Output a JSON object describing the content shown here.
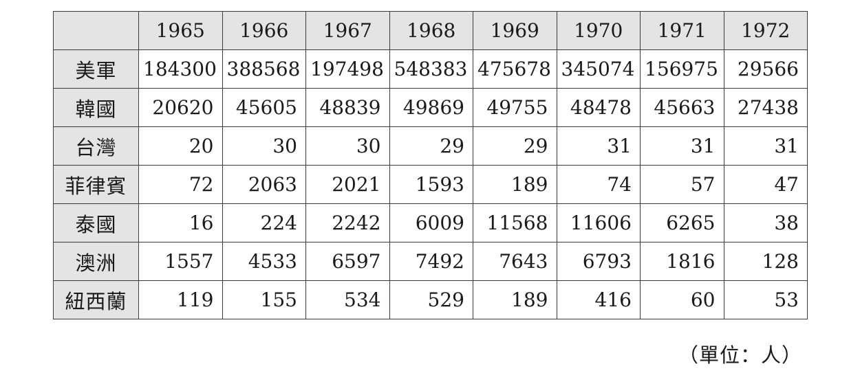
{
  "table": {
    "columns": [
      "1965",
      "1966",
      "1967",
      "1968",
      "1969",
      "1970",
      "1971",
      "1972"
    ],
    "rows": [
      {
        "label": "美軍",
        "values": [
          "184300",
          "388568",
          "197498",
          "548383",
          "475678",
          "345074",
          "156975",
          "29566"
        ]
      },
      {
        "label": "韓國",
        "values": [
          "20620",
          "45605",
          "48839",
          "49869",
          "49755",
          "48478",
          "45663",
          "27438"
        ]
      },
      {
        "label": "台灣",
        "values": [
          "20",
          "30",
          "30",
          "29",
          "29",
          "31",
          "31",
          "31"
        ]
      },
      {
        "label": "菲律賓",
        "values": [
          "72",
          "2063",
          "2021",
          "1593",
          "189",
          "74",
          "57",
          "47"
        ]
      },
      {
        "label": "泰國",
        "values": [
          "16",
          "224",
          "2242",
          "6009",
          "11568",
          "11606",
          "6265",
          "38"
        ]
      },
      {
        "label": "澳洲",
        "values": [
          "1557",
          "4533",
          "6597",
          "7492",
          "7643",
          "6793",
          "1816",
          "128"
        ]
      },
      {
        "label": "紐西蘭",
        "values": [
          "119",
          "155",
          "534",
          "529",
          "189",
          "416",
          "60",
          "53"
        ]
      }
    ]
  },
  "unit_note": "（單位：人）"
}
